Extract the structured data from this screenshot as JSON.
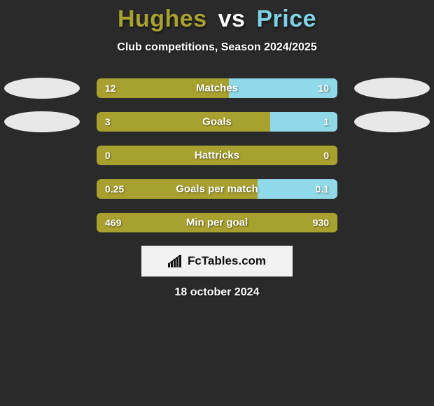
{
  "title": {
    "player1": "Hughes",
    "vs": "vs",
    "player2": "Price",
    "color_p1": "#a9a12f",
    "color_vs": "#ffffff",
    "color_p2": "#7fd3e6"
  },
  "subtitle": "Club competitions, Season 2024/2025",
  "colors": {
    "left_fill": "#a9a12f",
    "right_fill": "#8fd9e8",
    "bar_bg_left": "#a9a12f",
    "bar_bg_right": "#8fd9e8",
    "background": "#2a2a2a",
    "oval": "#e8e8e8",
    "text": "#ffffff"
  },
  "rows": [
    {
      "label": "Matches",
      "left_val": "12",
      "right_val": "10",
      "left_pct": 55,
      "right_pct": 45,
      "show_ovals": true
    },
    {
      "label": "Goals",
      "left_val": "3",
      "right_val": "1",
      "left_pct": 72,
      "right_pct": 28,
      "show_ovals": true
    },
    {
      "label": "Hattricks",
      "left_val": "0",
      "right_val": "0",
      "left_pct": 100,
      "right_pct": 0,
      "show_ovals": false
    },
    {
      "label": "Goals per match",
      "left_val": "0.25",
      "right_val": "0.1",
      "left_pct": 67,
      "right_pct": 33,
      "show_ovals": false
    },
    {
      "label": "Min per goal",
      "left_val": "469",
      "right_val": "930",
      "left_pct": 100,
      "right_pct": 0,
      "show_ovals": false
    }
  ],
  "attribution": "FcTables.com",
  "date": "18 october 2024"
}
